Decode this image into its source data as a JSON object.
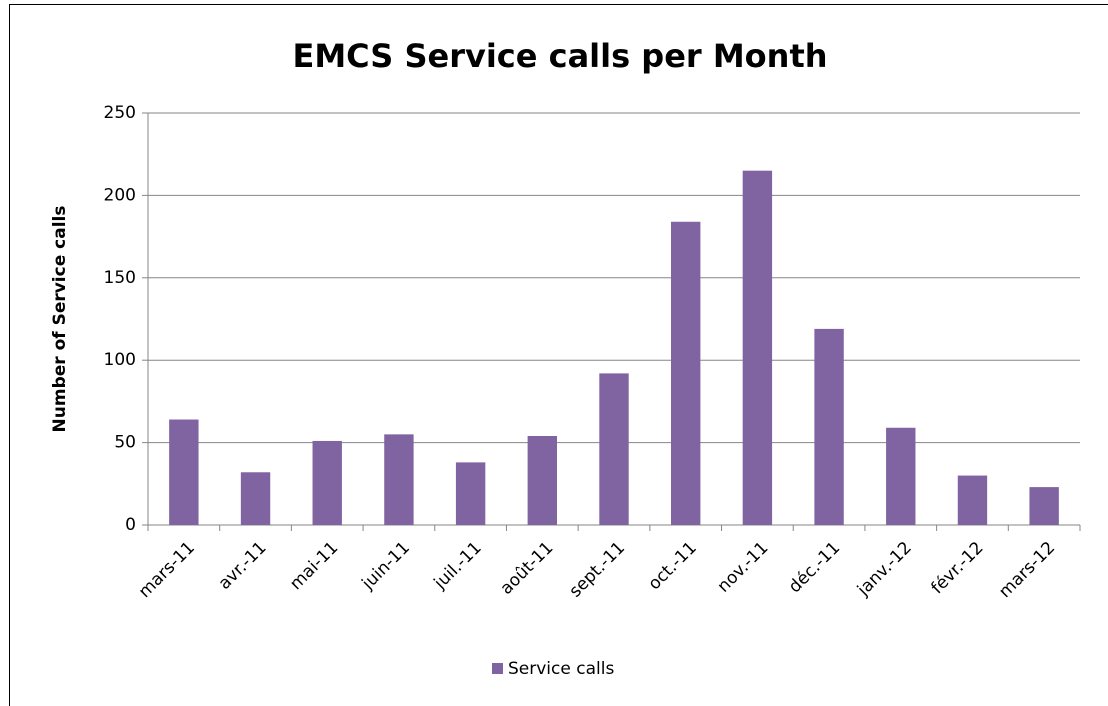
{
  "chart_data": {
    "type": "bar",
    "title": "EMCS Service calls per Month",
    "y_label": "Number of Service calls",
    "categories": [
      "mars-11",
      "avr.-11",
      "mai-11",
      "juin-11",
      "juil.-11",
      "août-11",
      "sept.-11",
      "oct.-11",
      "nov.-11",
      "déc.-11",
      "janv.-12",
      "févr.-12",
      "mars-12"
    ],
    "series": [
      {
        "name": "Service calls",
        "color": "#8064a2",
        "values": [
          64,
          32,
          51,
          55,
          38,
          54,
          92,
          184,
          215,
          119,
          59,
          30,
          23
        ]
      }
    ],
    "ylim": [
      0,
      250
    ],
    "yticks": [
      0,
      50,
      100,
      150,
      200,
      250
    ],
    "grid": true,
    "legend": "bottom"
  }
}
